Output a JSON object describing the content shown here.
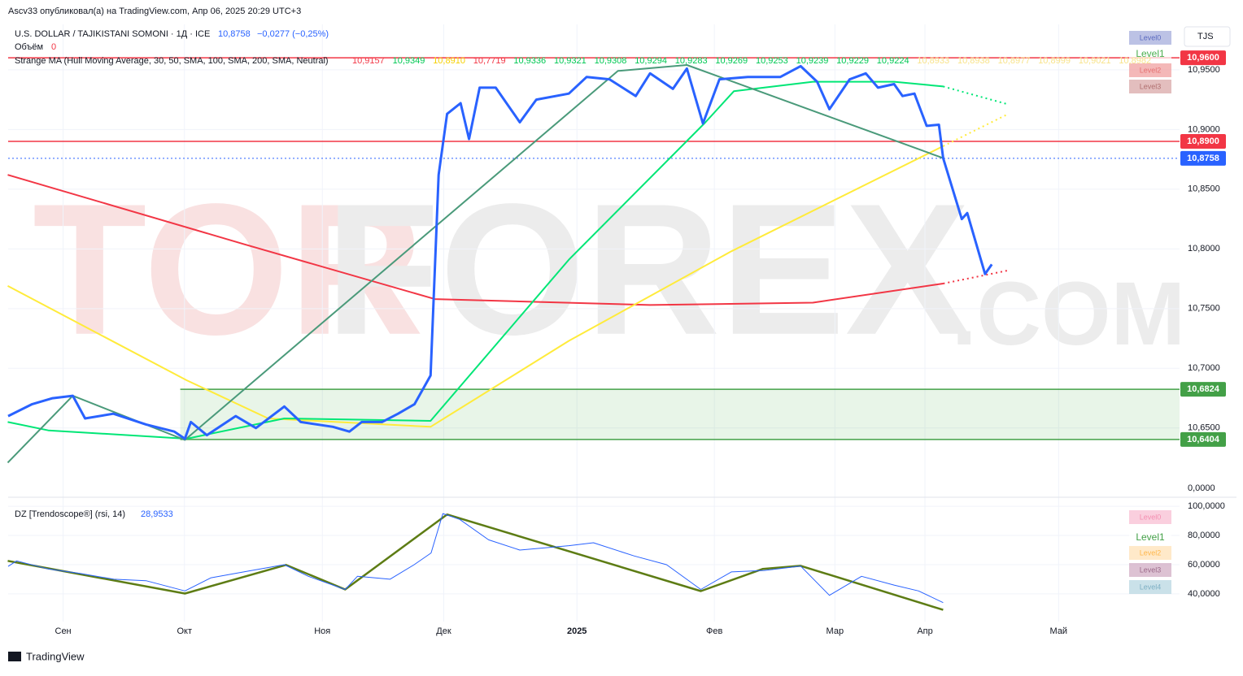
{
  "header": {
    "author": "Ascv33 опубликовал(а) на TradingView.com, Апр 06, 2025 20:29 UTC+3",
    "footer": "TradingView",
    "watermark": [
      "TOR",
      "FOREX",
      ".COM"
    ]
  },
  "chart_data": [
    {
      "type": "line",
      "title": "U.S. DOLLAR / TAJIKISTANI SOMONI · 1Д · ICE",
      "change": "−0,0277 (−0,25%)",
      "volume_label": "Объём",
      "volume": 0,
      "currency": "TJS",
      "volume_axis_label": "0,0000",
      "indicator": "Strange MA (Hull Moving Average, 30, 50, SMA, 100, SMA, 200, SMA, Neutral)",
      "indicator_values": [
        {
          "text": "10,9157",
          "color": "#f23645"
        },
        {
          "text": "10,9349",
          "color": "#00c853"
        },
        {
          "text": "10,8910",
          "color": "#f5d000"
        },
        {
          "text": "10,7719",
          "color": "#f23645"
        },
        {
          "text": "10,9336",
          "color": "#00c853"
        },
        {
          "text": "10,9321",
          "color": "#00c853"
        },
        {
          "text": "10,9308",
          "color": "#00c853"
        },
        {
          "text": "10,9294",
          "color": "#00c853"
        },
        {
          "text": "10,9283",
          "color": "#00c853"
        },
        {
          "text": "10,9269",
          "color": "#00c853"
        },
        {
          "text": "10,9253",
          "color": "#00c853"
        },
        {
          "text": "10,9239",
          "color": "#00c853"
        },
        {
          "text": "10,9229",
          "color": "#00c853"
        },
        {
          "text": "10,9224",
          "color": "#00c853"
        },
        {
          "text": "10,8933",
          "color": "#f8e38a"
        },
        {
          "text": "10,8938",
          "color": "#f8e38a"
        },
        {
          "text": "10,8977",
          "color": "#f8e38a"
        },
        {
          "text": "10,8999",
          "color": "#f8e38a"
        },
        {
          "text": "10,9021",
          "color": "#f8e38a"
        },
        {
          "text": "10,8982",
          "color": "#f8e38a"
        }
      ],
      "levels": [
        {
          "text": "Level0",
          "bg": "#9fa8da",
          "fg": "#5c6bc0"
        },
        {
          "text": "Level1",
          "bg": "#ffffff",
          "fg": "#4caf50"
        },
        {
          "text": "Level2",
          "bg": "#ef9a9a",
          "fg": "#e57373"
        },
        {
          "text": "Level3",
          "bg": "#d7a3a3",
          "fg": "#b07070"
        }
      ],
      "xlim": [
        -13,
        264
      ],
      "ylim": [
        10.607,
        10.988
      ],
      "xticks": [
        {
          "value": 0,
          "label": "Сен"
        },
        {
          "value": 28.7,
          "label": "Окт"
        },
        {
          "value": 61.3,
          "label": "Ноя"
        },
        {
          "value": 90,
          "label": "Дек"
        },
        {
          "value": 121.5,
          "label": "2025"
        },
        {
          "value": 154,
          "label": "Фев"
        },
        {
          "value": 182.5,
          "label": "Мар"
        },
        {
          "value": 203.8,
          "label": "Апр"
        },
        {
          "value": 235.4,
          "label": "Май"
        }
      ],
      "yticks": [
        {
          "value": 10.95,
          "label": "10,9500"
        },
        {
          "value": 10.9,
          "label": "10,9000"
        },
        {
          "value": 10.85,
          "label": "10,8500"
        },
        {
          "value": 10.8,
          "label": "10,8000"
        },
        {
          "value": 10.75,
          "label": "10,7500"
        },
        {
          "value": 10.7,
          "label": "10,7000"
        },
        {
          "value": 10.65,
          "label": "10,6500"
        }
      ],
      "hlines": [
        {
          "value": 10.96,
          "label": "10,9600",
          "color": "#f23645",
          "style": "solid"
        },
        {
          "value": 10.89,
          "label": "10,8900",
          "color": "#f23645",
          "style": "solid"
        },
        {
          "value": 10.8758,
          "label": "10,8758",
          "color": "#2962ff",
          "style": "dotted"
        },
        {
          "value": 10.6824,
          "label": "10,6824",
          "color": "#43a047",
          "style": "solid"
        },
        {
          "value": 10.6404,
          "label": "10,6404",
          "color": "#43a047",
          "style": "solid"
        }
      ],
      "zone": {
        "x0": 27.7,
        "color": "#4caf50"
      },
      "series": [
        {
          "color": "#f23645",
          "width": 2,
          "style": "solid",
          "x": [
            -13.1,
            42.7,
            87.9,
            138.8,
            177.3,
            208.1
          ],
          "values": [
            10.862,
            10.804,
            10.758,
            10.753,
            10.755,
            10.771
          ]
        },
        {
          "color": "#f23645",
          "width": 2,
          "style": "dotted",
          "x": [
            208.1,
            223.5
          ],
          "values": [
            10.771,
            10.782
          ]
        },
        {
          "color": "#ffeb3b",
          "width": 2,
          "style": "solid",
          "x": [
            -13.1,
            29.2,
            48.5,
            86.9,
            119.6,
            158,
            208.1
          ],
          "values": [
            10.769,
            10.69,
            10.658,
            10.651,
            10.723,
            10.798,
            10.886
          ]
        },
        {
          "color": "#ffeb3b",
          "width": 2,
          "style": "dotted",
          "x": [
            208.1,
            223.5
          ],
          "values": [
            10.886,
            10.913
          ]
        },
        {
          "color": "#00e676",
          "width": 2,
          "style": "solid",
          "x": [
            -13.1,
            -3.5,
            29.2,
            52.3,
            86.9,
            119.6,
            151.9,
            158.6,
            177.3,
            196.5,
            208.1
          ],
          "values": [
            10.655,
            10.648,
            10.641,
            10.658,
            10.656,
            10.791,
            10.906,
            10.932,
            10.94,
            10.94,
            10.936
          ]
        },
        {
          "color": "#00e676",
          "width": 2,
          "style": "dotted",
          "x": [
            208.1,
            223.5
          ],
          "values": [
            10.936,
            10.921
          ]
        },
        {
          "color": "#4a9a7a",
          "width": 2,
          "style": "solid",
          "x": [
            -13.1,
            2.3,
            28.8,
            131.2,
            147.5,
            208.1
          ],
          "values": [
            10.621,
            10.677,
            10.64,
            10.949,
            10.954,
            10.876
          ]
        },
        {
          "color": "#2962ff",
          "width": 3,
          "style": "solid",
          "x": [
            -13,
            -7.3,
            -2.5,
            2.3,
            5.2,
            11.9,
            19.6,
            26.3,
            28.8,
            30.2,
            34,
            40.8,
            45.6,
            52.3,
            56.2,
            63.8,
            67.7,
            70.6,
            75.4,
            79.2,
            83.1,
            86.9,
            88.8,
            90.8,
            94,
            96,
            98.5,
            102.3,
            108,
            111.9,
            119.6,
            123.8,
            129.2,
            135.4,
            138.8,
            144.2,
            147.5,
            151.3,
            155.2,
            161.9,
            169.6,
            174.4,
            178.3,
            181.2,
            186,
            189.8,
            192.7,
            196.5,
            198.5,
            201.3,
            204.2,
            207.1,
            208.1,
            212.5,
            213.8,
            218,
            219.6
          ],
          "values": [
            10.66,
            10.67,
            10.675,
            10.677,
            10.658,
            10.662,
            10.653,
            10.647,
            10.641,
            10.655,
            10.644,
            10.66,
            10.65,
            10.668,
            10.655,
            10.651,
            10.647,
            10.655,
            10.655,
            10.662,
            10.67,
            10.694,
            10.862,
            10.913,
            10.922,
            10.892,
            10.935,
            10.935,
            10.906,
            10.925,
            10.93,
            10.944,
            10.942,
            10.928,
            10.947,
            10.934,
            10.951,
            10.905,
            10.942,
            10.944,
            10.944,
            10.953,
            10.94,
            10.917,
            10.942,
            10.947,
            10.935,
            10.938,
            10.928,
            10.93,
            10.903,
            10.904,
            10.876,
            10.825,
            10.83,
            10.779,
            10.787
          ]
        }
      ]
    },
    {
      "type": "line",
      "title": "DZ [Trendoscope®] (rsi, 14)",
      "last": "28,9533",
      "levels": [
        {
          "text": "Level0",
          "bg": "#f8bbd0",
          "fg": "#f48fb1"
        },
        {
          "text": "Level1",
          "bg": "#ffffff",
          "fg": "#43a047"
        },
        {
          "text": "Level2",
          "bg": "#ffe0b2",
          "fg": "#ffb74d"
        },
        {
          "text": "Level3",
          "bg": "#cfa8c0",
          "fg": "#9c6b8a"
        },
        {
          "text": "Level4",
          "bg": "#b3d4e0",
          "fg": "#7fb0c4"
        }
      ],
      "xlim": [
        -13,
        264
      ],
      "ylim": [
        21,
        103.4
      ],
      "yticks": [
        {
          "value": 100,
          "label": "100,0000"
        },
        {
          "value": 80,
          "label": "80,0000"
        },
        {
          "value": 60,
          "label": "60,0000"
        },
        {
          "value": 40,
          "label": "40,0000"
        }
      ],
      "series": [
        {
          "color": "#5d7c14",
          "width": 2.5,
          "style": "solid",
          "x": [
            -13.1,
            28.8,
            52.7,
            66.7,
            90.8,
            150.8,
            165.4,
            174.4,
            208.1
          ],
          "values": [
            62.6,
            40.2,
            59.8,
            43,
            94.4,
            41.9,
            57,
            59.2,
            29
          ]
        },
        {
          "color": "#2962ff",
          "width": 1,
          "style": "solid",
          "x": [
            -13,
            -11,
            -3.5,
            4,
            12,
            19.6,
            28.8,
            35,
            42.7,
            52.3,
            58,
            66.7,
            69.6,
            77.3,
            83,
            87,
            89.8,
            93.8,
            100.6,
            108,
            119.6,
            125.4,
            135,
            142.7,
            150.8,
            158,
            165.8,
            174.4,
            181.2,
            188.8,
            196.5,
            202.3,
            208.1
          ],
          "values": [
            58.8,
            62.6,
            57,
            54,
            50,
            49,
            42,
            51,
            55,
            60,
            52,
            43,
            52,
            50,
            60,
            68,
            95,
            91,
            77,
            70,
            73,
            75,
            66,
            60,
            43,
            55,
            56,
            59,
            39,
            52,
            46,
            42,
            34
          ]
        }
      ]
    }
  ]
}
